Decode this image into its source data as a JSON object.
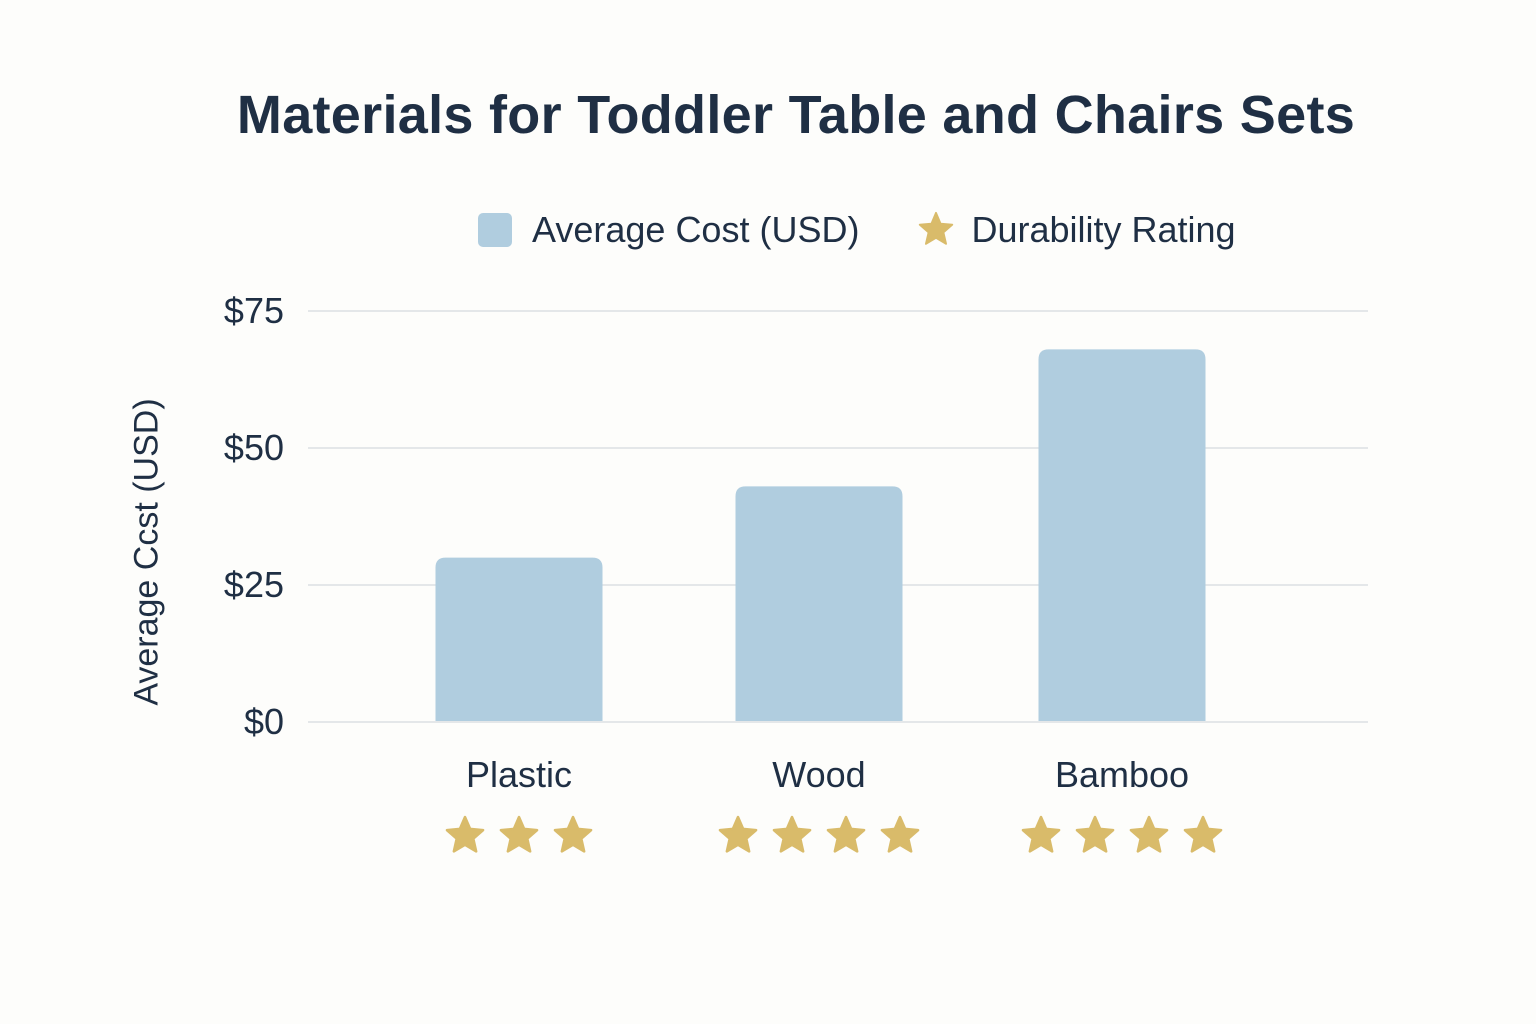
{
  "chart_data": {
    "type": "bar",
    "title": "Materials for Toddler Table and Chairs Sets",
    "ylabel": "Average Ccst (USD)",
    "xlabel": "",
    "categories": [
      "Plastic",
      "Wood",
      "Bamboo"
    ],
    "series": [
      {
        "name": "Average Cost (USD)",
        "values": [
          30,
          43,
          68
        ],
        "color": "#b0cddf"
      },
      {
        "name": "Durability Rating",
        "values": [
          3,
          4,
          4
        ],
        "color": "#d9bb6a",
        "marker": "star-icon"
      }
    ],
    "ylim": [
      0,
      75
    ],
    "yticks": [
      0,
      25,
      50,
      75
    ],
    "ytick_labels": [
      "$0",
      "$25",
      "$50",
      "$75"
    ],
    "grid": true,
    "legend_position": "top-right",
    "colors": {
      "bar": "#b0cddf",
      "star": "#d9bb6a",
      "grid": "#e4e7e9",
      "text": "#1f2f44",
      "background": "#fdfdfb"
    }
  }
}
